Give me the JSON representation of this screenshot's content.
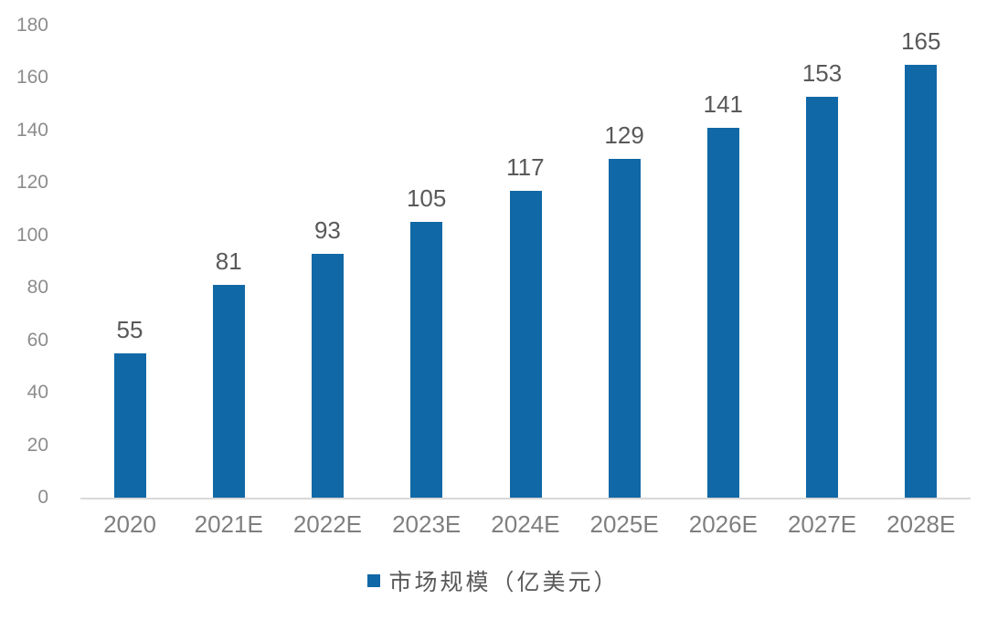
{
  "chart_data": {
    "type": "bar",
    "categories": [
      "2020",
      "2021E",
      "2022E",
      "2023E",
      "2024E",
      "2025E",
      "2026E",
      "2027E",
      "2028E"
    ],
    "values": [
      55,
      81,
      93,
      105,
      117,
      129,
      141,
      153,
      165
    ],
    "title": "",
    "xlabel": "",
    "ylabel": "",
    "ylim": [
      0,
      180
    ],
    "yticks": [
      0,
      20,
      40,
      60,
      80,
      100,
      120,
      140,
      160,
      180
    ],
    "grid": false,
    "legend_position": "bottom",
    "legend": [
      {
        "label": "市场规模（亿美元）",
        "color": "#1168A6"
      }
    ],
    "data_labels": true
  },
  "colors": {
    "bar": "#1168A6",
    "axis_line": "#D9D9D9",
    "y_tick_label": "#8C8C8C",
    "x_tick_label": "#7F7F7F",
    "value_label": "#595959",
    "legend_text": "#595959",
    "background": "#FFFFFF"
  }
}
